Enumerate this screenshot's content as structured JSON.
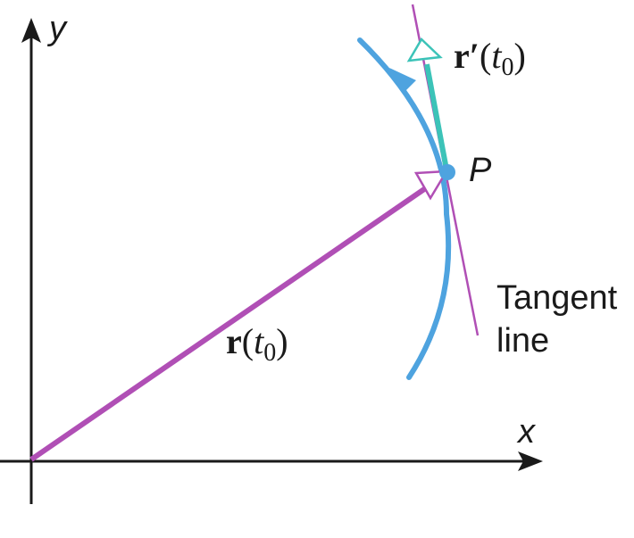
{
  "axes": {
    "x_label": "x",
    "y_label": "y"
  },
  "point": {
    "label": "P"
  },
  "position_vector": {
    "symbol": "r",
    "open_paren": "(",
    "variable": "t",
    "subscript": "0",
    "close_paren": ")"
  },
  "derivative_vector": {
    "symbol": "r′",
    "open_paren": "(",
    "variable": "t",
    "subscript": "0",
    "close_paren": ")"
  },
  "tangent_label": {
    "line1": "Tangent",
    "line2": "line"
  },
  "colors": {
    "axis": "#1a1a1a",
    "position_vector": "#b04fb5",
    "tangent_line": "#b04fb5",
    "curve": "#4ea3df",
    "point": "#4ea3df",
    "derivative_vector": "#3cc3b8"
  }
}
